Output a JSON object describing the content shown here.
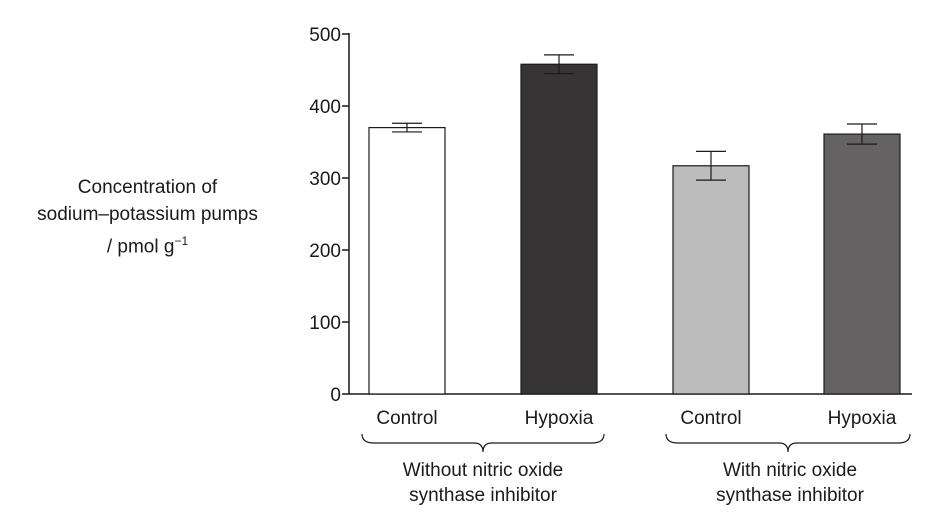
{
  "chart_data": {
    "type": "bar",
    "categories": [
      "Control",
      "Hypoxia",
      "Control",
      "Hypoxia"
    ],
    "values": [
      370,
      458,
      317,
      361
    ],
    "error": [
      6,
      13,
      20,
      14
    ],
    "bar_colors": [
      "#ffffff",
      "#373435",
      "#bcbcbc",
      "#646263"
    ],
    "ylabel_lines": [
      "Concentration of",
      "sodium–potassium pumps",
      "/ pmol g"
    ],
    "ylabel_superscript": "−1",
    "ylim": [
      0,
      500
    ],
    "yticks": [
      "0",
      "100",
      "200",
      "300",
      "400",
      "500"
    ],
    "groups": [
      {
        "lines": [
          "Without nitric oxide",
          "synthase inhibitor"
        ],
        "categories": [
          0,
          1
        ]
      },
      {
        "lines": [
          "With nitric oxide",
          "synthase inhibitor"
        ],
        "categories": [
          2,
          3
        ]
      }
    ],
    "grid": false,
    "legend": "none"
  }
}
